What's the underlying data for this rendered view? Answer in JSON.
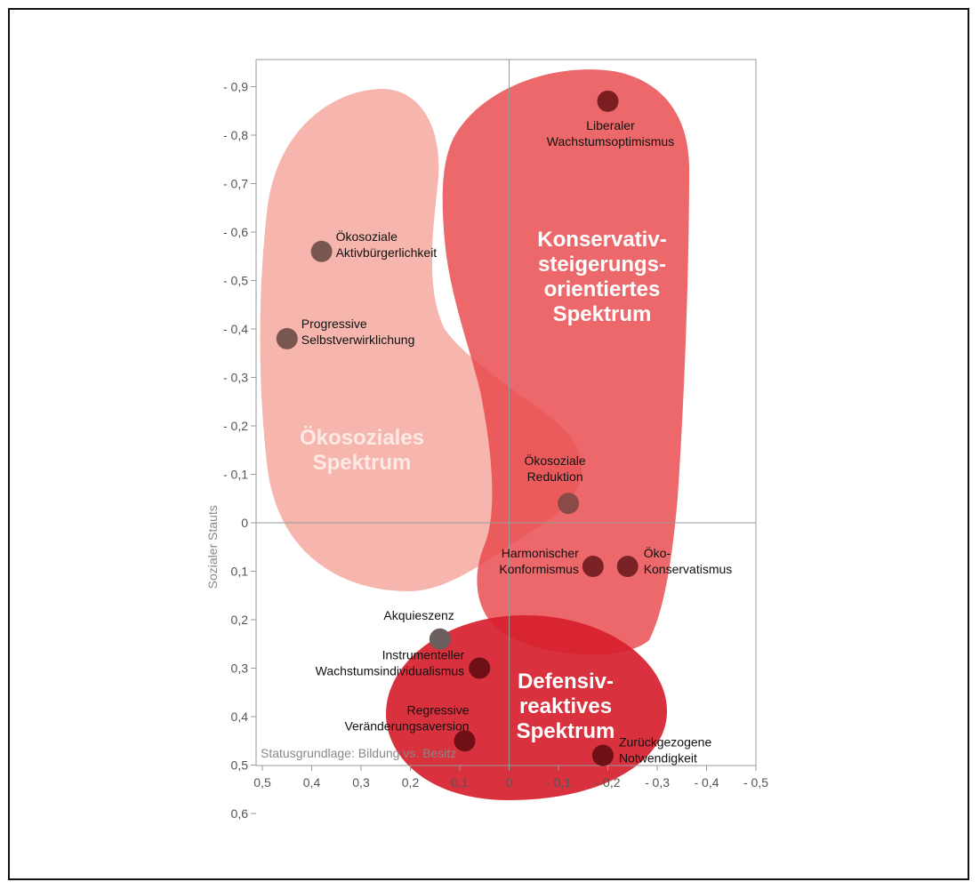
{
  "chart_data": {
    "type": "scatter",
    "title": "",
    "xlabel": "Statusgrundlage: Bildung vs. Besitz",
    "ylabel": "Sozialer Stauts",
    "xlim": [
      0.5,
      -0.5
    ],
    "ylim": [
      -0.9,
      0.6
    ],
    "x_ticks": [
      0.5,
      0.4,
      0.3,
      0.2,
      0.1,
      0,
      -0.1,
      -0.2,
      -0.3,
      -0.4,
      -0.5
    ],
    "x_tick_labels": [
      "0,5",
      "0,4",
      "0,3",
      "0,2",
      "0,1",
      "0",
      "- 0,1",
      "- 0,2",
      "- 0,3",
      "- 0,4",
      "- 0,5"
    ],
    "y_ticks": [
      -0.9,
      -0.8,
      -0.7,
      -0.6,
      -0.5,
      -0.4,
      -0.3,
      -0.2,
      -0.1,
      0,
      0.1,
      0.2,
      0.3,
      0.4,
      0.5,
      0.6
    ],
    "y_tick_labels": [
      "- 0,9",
      "- 0,8",
      "- 0,7",
      "- 0,6",
      "- 0,5",
      "- 0,4",
      "- 0,3",
      "- 0,2",
      "- 0,1",
      "0",
      "0,1",
      "0,2",
      "0,3",
      "0,4",
      "0,5",
      "0,6"
    ],
    "grid": false,
    "zero_lines": true,
    "regions": [
      {
        "name": "Ökosoziales Spektrum",
        "lines": [
          "Ökosoziales",
          "Spektrum"
        ],
        "color": "#f4a49a"
      },
      {
        "name": "Konservativ-steigerungs-orientiertes Spektrum",
        "lines": [
          "Konservativ-",
          "steigerungs-",
          "orientiertes",
          "Spektrum"
        ],
        "color": "#e8474a"
      },
      {
        "name": "Defensiv-reaktives Spektrum",
        "lines": [
          "Defensiv-",
          "reaktives",
          "Spektrum"
        ],
        "color": "#d61f2c"
      }
    ],
    "points": [
      {
        "lines": [
          "Liberaler",
          "Wachstumsoptimismus"
        ],
        "x": -0.2,
        "y": -0.87,
        "color": "#7a1e22"
      },
      {
        "lines": [
          "Ökosoziale",
          "Aktivbürgerlichkeit"
        ],
        "x": 0.38,
        "y": -0.56,
        "color": "#7a5650"
      },
      {
        "lines": [
          "Progressive",
          "Selbstverwirklichung"
        ],
        "x": 0.45,
        "y": -0.38,
        "color": "#7a5650"
      },
      {
        "lines": [
          "Ökosoziale",
          "Reduktion"
        ],
        "x": -0.12,
        "y": -0.04,
        "color": "#8a4a47"
      },
      {
        "lines": [
          "Harmonischer",
          "Konformismus"
        ],
        "x": -0.17,
        "y": 0.09,
        "color": "#7a2226"
      },
      {
        "lines": [
          "Öko-",
          "Konservatismus"
        ],
        "x": -0.24,
        "y": 0.09,
        "color": "#7a2226"
      },
      {
        "lines": [
          "Akquieszenz"
        ],
        "x": 0.14,
        "y": 0.24,
        "color": "#6b5e5e"
      },
      {
        "lines": [
          "Instrumenteller",
          "Wachstumsindividualismus"
        ],
        "x": 0.06,
        "y": 0.3,
        "color": "#6e1016"
      },
      {
        "lines": [
          "Regressive",
          "Veränderungsaversion"
        ],
        "x": 0.09,
        "y": 0.45,
        "color": "#6e1016"
      },
      {
        "lines": [
          "Zurückgezogene",
          "Notwendigkeit"
        ],
        "x": -0.19,
        "y": 0.48,
        "color": "#6e1016"
      }
    ]
  }
}
